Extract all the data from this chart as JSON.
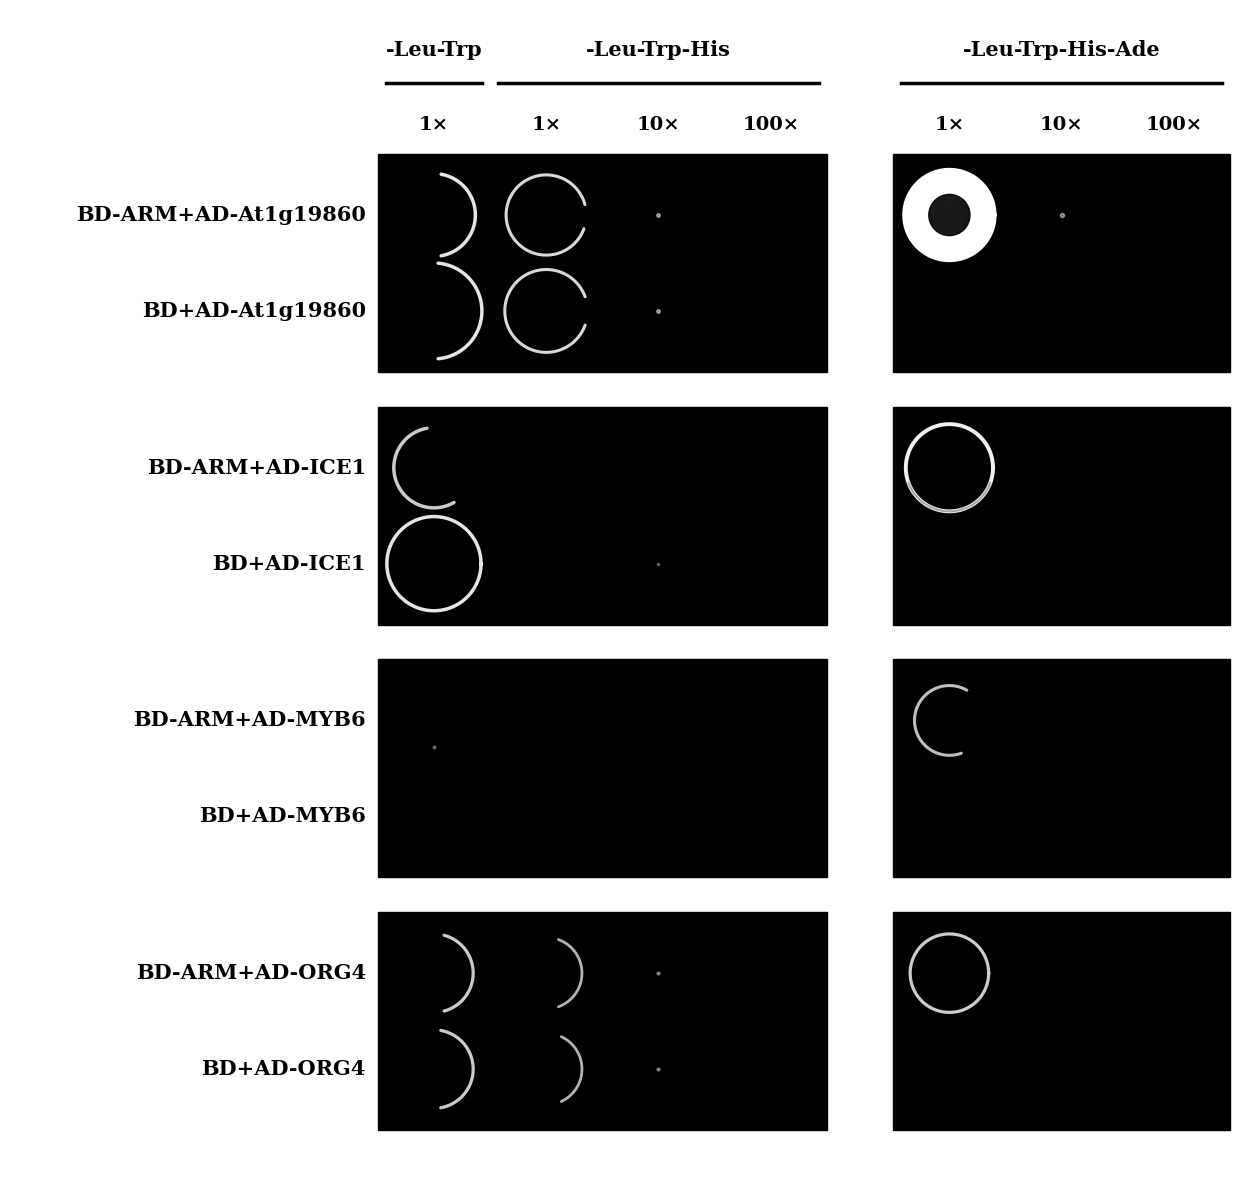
{
  "fig_width": 12.4,
  "fig_height": 11.84,
  "fig_bg": "#ffffff",
  "panel_bg": "#000000",
  "text_color": "#000000",
  "white": "#ffffff",
  "header": {
    "group1_label": "-Leu-Trp",
    "group2_label": "-Leu-Trp-His",
    "group3_label": "-Leu-Trp-His-Ade",
    "col_labels_g1": [
      "1×"
    ],
    "col_labels_g2": [
      "1×",
      "10×",
      "100×"
    ],
    "col_labels_g3": [
      "1×",
      "10×",
      "100×"
    ]
  },
  "row_labels": [
    [
      "BD-ARM+AD-At1g19860",
      "BD+AD-At1g19860"
    ],
    [
      "BD-ARM+AD-ICE1",
      "BD+AD-ICE1"
    ],
    [
      "BD-ARM+AD-MYB6",
      "BD+AD-MYB6"
    ],
    [
      "BD-ARM+AD-ORG4",
      "BD+AD-ORG4"
    ]
  ],
  "label_fontsize": 15,
  "header_fontsize": 15,
  "multiplier_fontsize": 14
}
